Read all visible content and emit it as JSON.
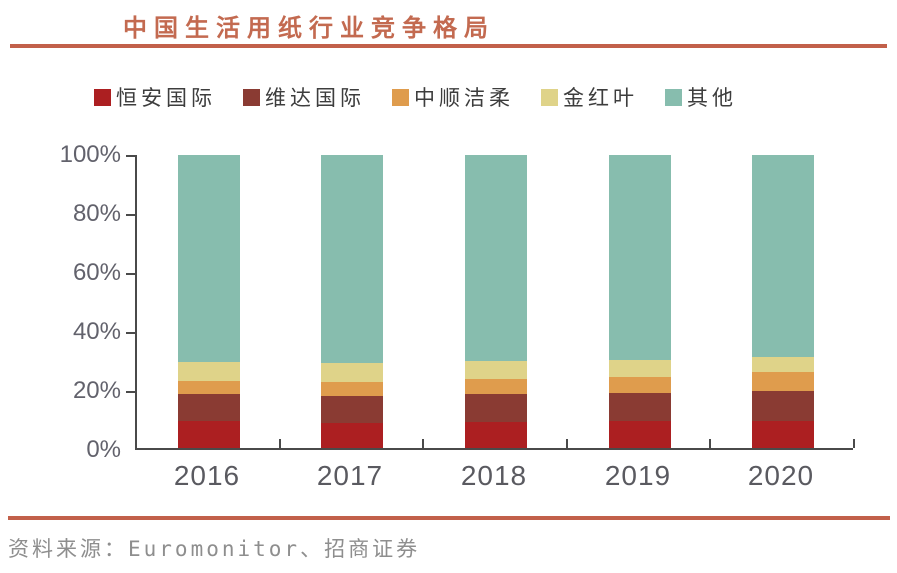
{
  "title": "中国生活用纸行业竞争格局",
  "source": "资料来源：Euromonitor、招商证券",
  "colors": {
    "accent_rule": "#C2604A",
    "title_text": "#C36A50",
    "axis": "#4A4A4A",
    "ytick_label": "#62626C",
    "xtick_label": "#5A5A60",
    "legend_text": "#3D3D3D",
    "source_text": "#8E8E8E"
  },
  "chart_data": {
    "type": "bar",
    "stacked": true,
    "title": "中国生活用纸行业竞争格局",
    "categories": [
      "2016",
      "2017",
      "2018",
      "2019",
      "2020"
    ],
    "series": [
      {
        "name": "恒安国际",
        "color": "#AC1F21",
        "values": [
          9.2,
          8.5,
          9.0,
          9.2,
          9.2
        ]
      },
      {
        "name": "维达国际",
        "color": "#8A3B33",
        "values": [
          9.3,
          9.3,
          9.6,
          9.7,
          10.4
        ]
      },
      {
        "name": "中顺洁柔",
        "color": "#DF9C4D",
        "values": [
          4.4,
          4.7,
          4.9,
          5.4,
          6.5
        ]
      },
      {
        "name": "金红叶",
        "color": "#DFD389",
        "values": [
          6.6,
          6.4,
          6.1,
          5.9,
          5.1
        ]
      },
      {
        "name": "其他",
        "color": "#87BDAE",
        "values": [
          70.5,
          71.1,
          70.4,
          69.8,
          68.8
        ]
      }
    ],
    "xlabel": "",
    "ylabel": "",
    "ylim": [
      0,
      100
    ],
    "y_ticks": [
      "100%",
      "80%",
      "60%",
      "40%",
      "20%",
      "0%"
    ],
    "y_tick_values": [
      100,
      80,
      60,
      40,
      20,
      0
    ],
    "legend_position": "top",
    "grid": false,
    "unit": "percent"
  }
}
